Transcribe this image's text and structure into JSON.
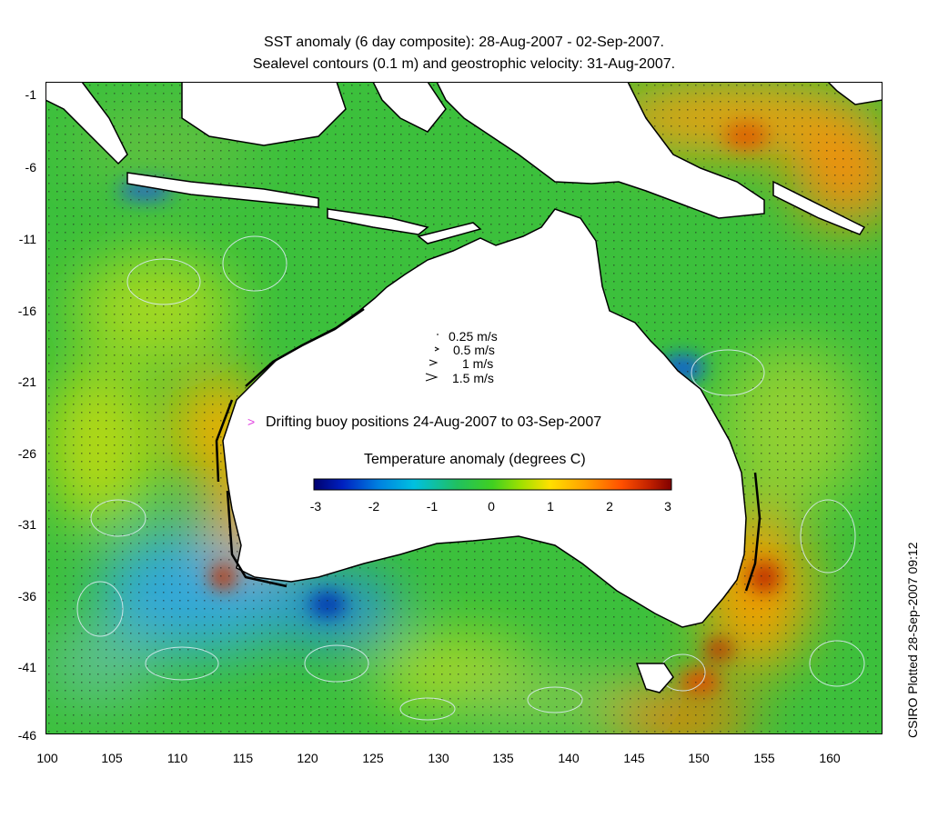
{
  "title": {
    "line1": "SST anomaly (6 day composite): 28-Aug-2007 - 02-Sep-2007.",
    "line2": "Sealevel contours (0.1 m) and geostrophic velocity: 31-Aug-2007."
  },
  "axes": {
    "x_ticks": [
      "100",
      "105",
      "110",
      "115",
      "120",
      "125",
      "130",
      "135",
      "140",
      "145",
      "150",
      "155",
      "160"
    ],
    "y_ticks": [
      "-1",
      "-6",
      "-11",
      "-16",
      "-21",
      "-26",
      "-31",
      "-36",
      "-41",
      "-46"
    ]
  },
  "velocity_scale": {
    "items": [
      "0.25 m/s",
      "0.5 m/s",
      "1 m/s",
      "1.5 m/s"
    ]
  },
  "buoy_legend": {
    "marker": ">",
    "text": "Drifting buoy positions 24-Aug-2007 to 03-Sep-2007",
    "color": "#e040e0"
  },
  "colorbar": {
    "title": "Temperature anomaly (degrees C)",
    "ticks": [
      "-3",
      "-2",
      "-1",
      "0",
      "1",
      "2",
      "3"
    ],
    "range": [
      -3,
      3
    ],
    "colors": [
      "#00006e",
      "#0020c0",
      "#0080e0",
      "#00c0e0",
      "#20c060",
      "#40d020",
      "#a0e000",
      "#ffe000",
      "#ffa000",
      "#ff5000",
      "#c02000",
      "#800000"
    ]
  },
  "side_note": "CSIRO Plotted 28-Sep-2007 09:12",
  "map": {
    "background_color": "#3cc03c",
    "land_color": "#ffffff",
    "coast_color": "#000000",
    "contour_color": "#d8eaf0"
  }
}
